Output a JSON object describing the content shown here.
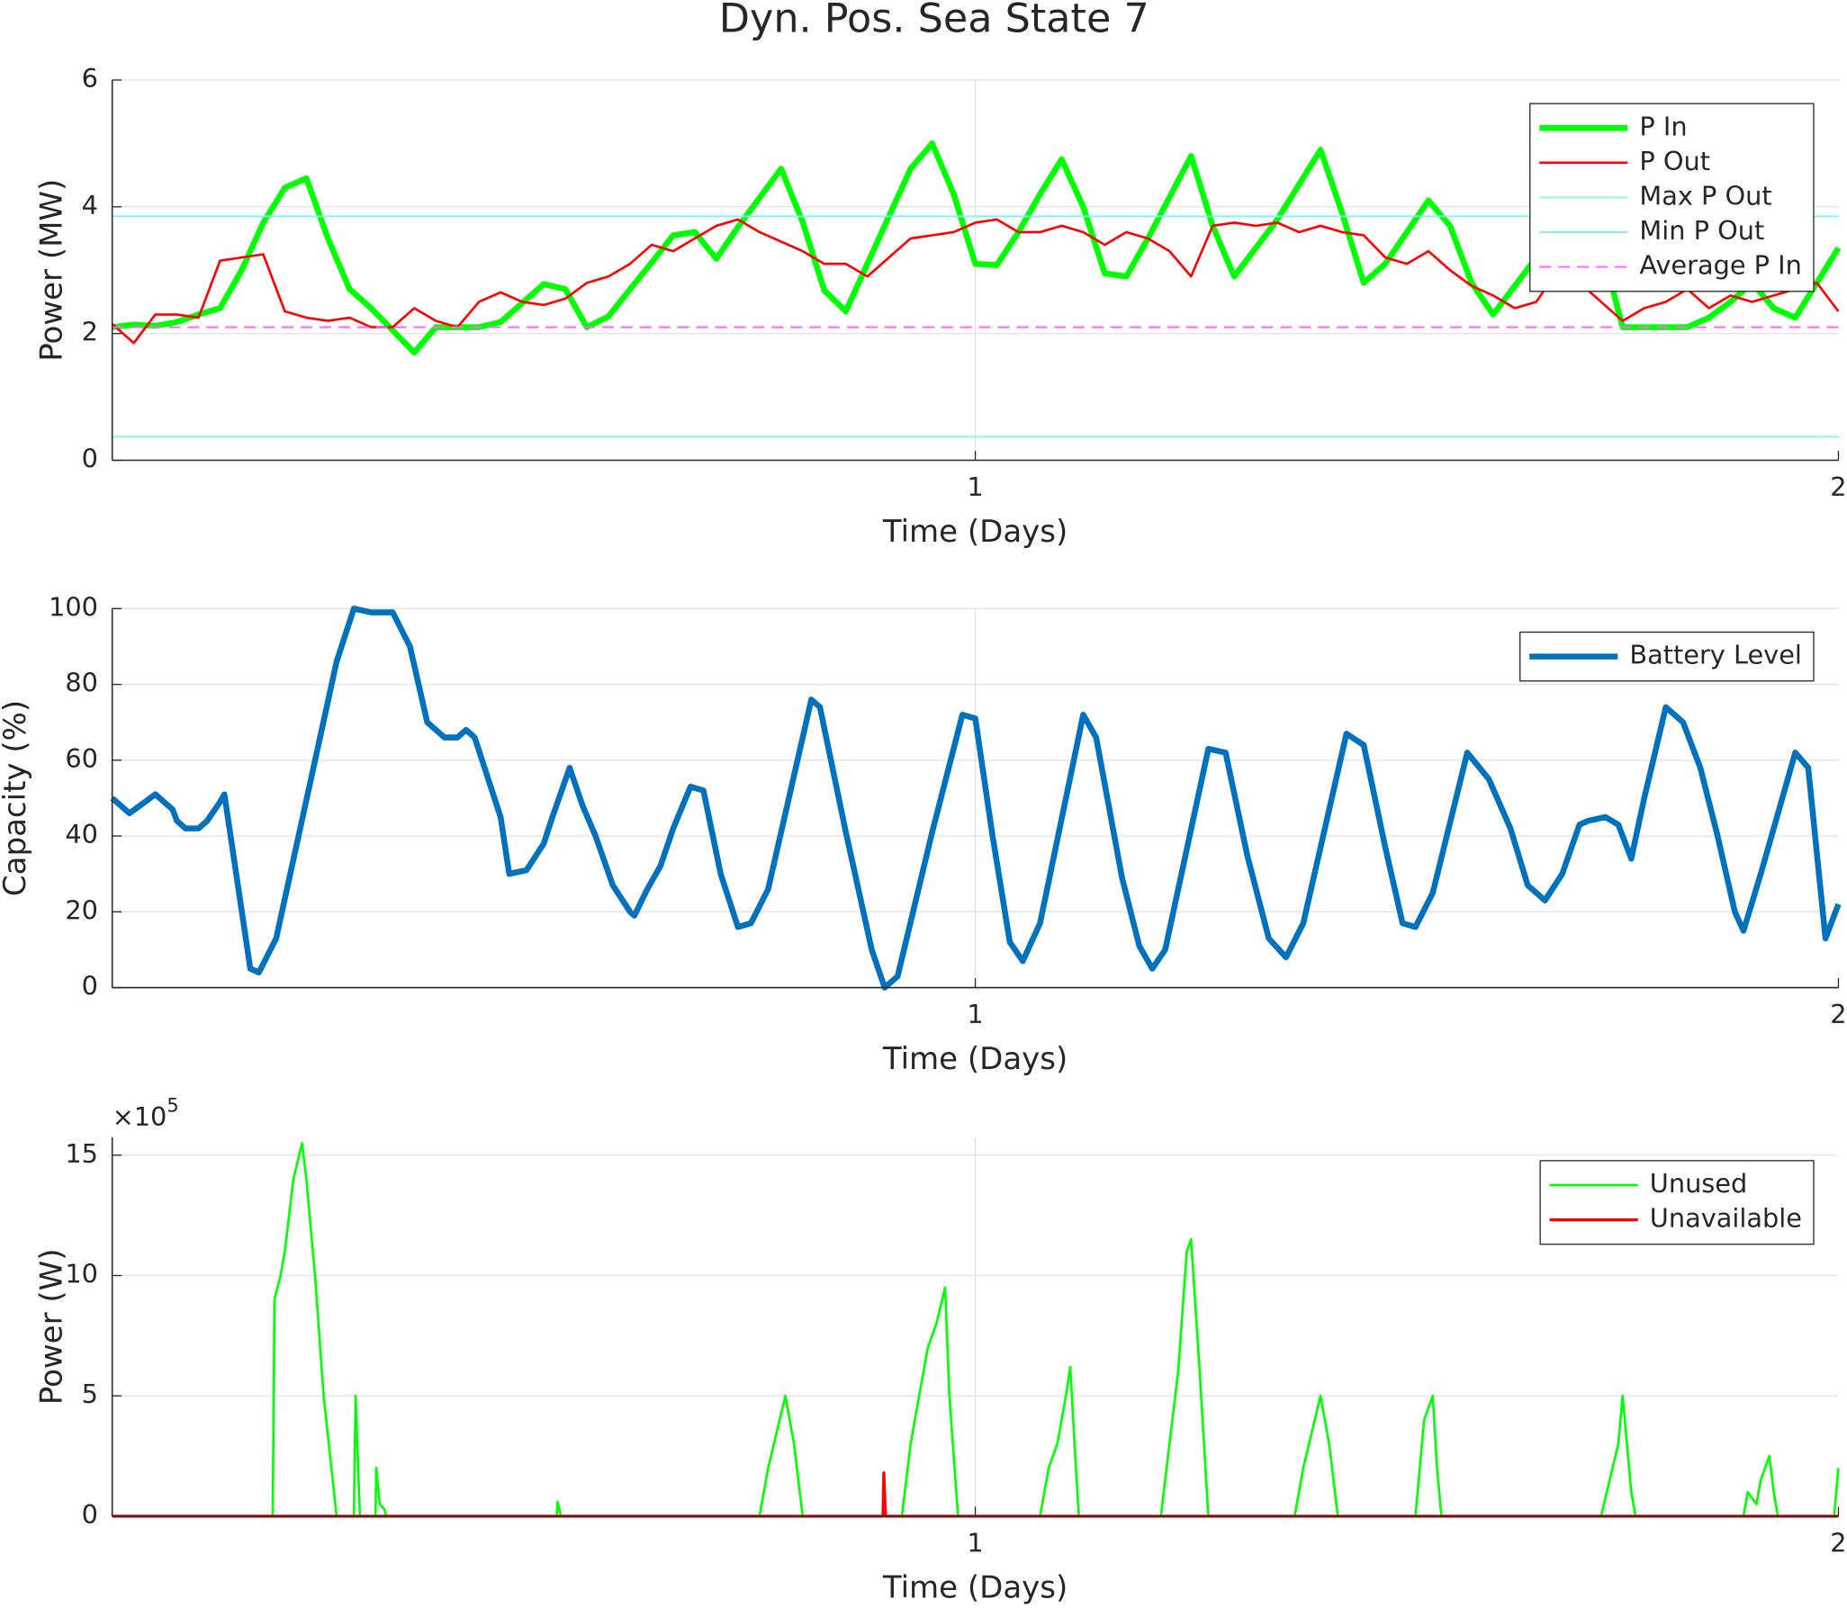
{
  "chart_data": [
    {
      "type": "line",
      "title": "Dyn. Pos. Sea State 7",
      "x_label": "Time (Days)",
      "y_label": "Power (MW)",
      "xlim": [
        0,
        2
      ],
      "xticks": [
        1,
        2
      ],
      "ylim": [
        0,
        6
      ],
      "yticks": [
        0,
        2,
        4,
        6
      ],
      "grid": true,
      "legend": "northeast",
      "x": [
        0,
        0.025,
        0.05,
        0.075,
        0.1,
        0.125,
        0.15,
        0.175,
        0.2,
        0.225,
        0.25,
        0.275,
        0.3,
        0.325,
        0.35,
        0.375,
        0.4,
        0.425,
        0.45,
        0.475,
        0.5,
        0.525,
        0.55,
        0.575,
        0.6,
        0.625,
        0.65,
        0.675,
        0.7,
        0.725,
        0.75,
        0.775,
        0.8,
        0.825,
        0.85,
        0.875,
        0.9,
        0.925,
        0.95,
        0.975,
        1,
        1.025,
        1.05,
        1.075,
        1.1,
        1.125,
        1.15,
        1.175,
        1.2,
        1.225,
        1.25,
        1.275,
        1.3,
        1.325,
        1.35,
        1.375,
        1.4,
        1.425,
        1.45,
        1.475,
        1.5,
        1.525,
        1.55,
        1.575,
        1.6,
        1.625,
        1.65,
        1.675,
        1.7,
        1.725,
        1.75,
        1.775,
        1.8,
        1.825,
        1.85,
        1.875,
        1.9,
        1.925,
        1.95,
        1.975,
        2
      ],
      "series": [
        {
          "name": "P In",
          "color": "#00ff00",
          "linewidth": 5,
          "values": [
            2.1,
            2.14,
            2.12,
            2.18,
            2.3,
            2.4,
            3.0,
            3.75,
            4.3,
            4.45,
            3.5,
            2.7,
            2.4,
            2.05,
            1.7,
            2.1,
            2.1,
            2.1,
            2.18,
            2.48,
            2.78,
            2.7,
            2.1,
            2.27,
            2.7,
            3.12,
            3.55,
            3.6,
            3.18,
            3.68,
            4.14,
            4.6,
            3.76,
            2.68,
            2.35,
            3.1,
            3.85,
            4.6,
            5.0,
            4.2,
            3.1,
            3.08,
            3.6,
            4.2,
            4.75,
            4.0,
            2.95,
            2.9,
            3.5,
            4.15,
            4.8,
            3.7,
            2.9,
            3.35,
            3.8,
            4.35,
            4.9,
            3.9,
            2.8,
            3.1,
            3.6,
            4.1,
            3.7,
            2.8,
            2.3,
            2.75,
            3.2,
            3.8,
            4.6,
            3.4,
            2.1,
            2.1,
            2.1,
            2.1,
            2.25,
            2.5,
            2.8,
            2.4,
            2.25,
            2.8,
            3.35
          ]
        },
        {
          "name": "P Out",
          "color": "#ff0000",
          "linewidth": 2,
          "values": [
            2.15,
            1.85,
            2.3,
            2.3,
            2.25,
            3.15,
            3.2,
            3.25,
            2.35,
            2.25,
            2.2,
            2.25,
            2.1,
            2.1,
            2.4,
            2.2,
            2.1,
            2.5,
            2.65,
            2.5,
            2.45,
            2.55,
            2.8,
            2.9,
            3.1,
            3.4,
            3.3,
            3.5,
            3.7,
            3.8,
            3.6,
            3.45,
            3.3,
            3.1,
            3.1,
            2.9,
            3.2,
            3.5,
            3.55,
            3.6,
            3.75,
            3.8,
            3.6,
            3.6,
            3.7,
            3.6,
            3.4,
            3.6,
            3.5,
            3.3,
            2.9,
            3.7,
            3.75,
            3.7,
            3.75,
            3.6,
            3.7,
            3.6,
            3.55,
            3.2,
            3.1,
            3.3,
            3.0,
            2.75,
            2.6,
            2.4,
            2.5,
            3.0,
            2.8,
            2.5,
            2.2,
            2.4,
            2.5,
            2.7,
            2.4,
            2.6,
            2.5,
            2.6,
            2.7,
            2.8,
            2.35
          ]
        },
        {
          "name": "Max P Out",
          "color": "#80f5f0",
          "linewidth": 1.5,
          "constant": 3.85
        },
        {
          "name": "Min P Out",
          "color": "#80f5f0",
          "linewidth": 1.5,
          "constant": 0.37
        },
        {
          "name": "Average P In",
          "color": "#ff66ff",
          "linewidth": 1.5,
          "dashed": true,
          "constant": 2.1
        }
      ]
    },
    {
      "type": "line",
      "x_label": "Time (Days)",
      "y_label": "Capacity (%)",
      "xlim": [
        0,
        2
      ],
      "xticks": [
        1,
        2
      ],
      "ylim": [
        0,
        100
      ],
      "yticks": [
        0,
        20,
        40,
        60,
        80,
        100
      ],
      "grid": true,
      "legend": "northeast",
      "x": [
        0,
        0.02,
        0.05,
        0.07,
        0.075,
        0.085,
        0.1,
        0.11,
        0.125,
        0.13,
        0.16,
        0.17,
        0.19,
        0.26,
        0.28,
        0.3,
        0.325,
        0.345,
        0.365,
        0.385,
        0.4,
        0.41,
        0.42,
        0.45,
        0.46,
        0.48,
        0.5,
        0.51,
        0.53,
        0.545,
        0.56,
        0.58,
        0.6,
        0.605,
        0.62,
        0.635,
        0.65,
        0.67,
        0.685,
        0.705,
        0.725,
        0.74,
        0.76,
        0.81,
        0.82,
        0.85,
        0.88,
        0.895,
        0.91,
        0.95,
        0.985,
        1.0,
        1.02,
        1.04,
        1.055,
        1.075,
        1.125,
        1.14,
        1.17,
        1.19,
        1.205,
        1.22,
        1.27,
        1.29,
        1.315,
        1.34,
        1.36,
        1.38,
        1.43,
        1.45,
        1.475,
        1.495,
        1.51,
        1.53,
        1.57,
        1.595,
        1.62,
        1.64,
        1.66,
        1.68,
        1.7,
        1.71,
        1.73,
        1.745,
        1.76,
        1.775,
        1.8,
        1.82,
        1.84,
        1.86,
        1.88,
        1.89,
        1.91,
        1.95,
        1.965,
        1.985,
        2
      ],
      "series": [
        {
          "name": "Battery Level",
          "color": "#0072bd",
          "linewidth": 5,
          "values": [
            50,
            46,
            51,
            47,
            44,
            42,
            42,
            44,
            49,
            51,
            5,
            4,
            13,
            86,
            100,
            99,
            99,
            90,
            70,
            66,
            66,
            68,
            66,
            45,
            30,
            31,
            38,
            45,
            58,
            48,
            40,
            27,
            20,
            19,
            26,
            32,
            42,
            53,
            52,
            30,
            16,
            17,
            26,
            76,
            74,
            41,
            10,
            0,
            3,
            41,
            72,
            71,
            40,
            12,
            7,
            17,
            72,
            66,
            29,
            11,
            5,
            10,
            63,
            62,
            35,
            13,
            8,
            17,
            67,
            64,
            37,
            17,
            16,
            25,
            62,
            55,
            42,
            27,
            23,
            30,
            43,
            44,
            45,
            43,
            34,
            50,
            74,
            70,
            58,
            40,
            20,
            15,
            30,
            62,
            58,
            13,
            22
          ]
        }
      ]
    },
    {
      "type": "line",
      "x_label": "Time (Days)",
      "y_label": "Power (W)",
      "y_multiplier": "×10",
      "y_multiplier_exponent": "5",
      "xlim": [
        0,
        2
      ],
      "xticks": [
        1,
        2
      ],
      "ylim": [
        0,
        15.75
      ],
      "yticks": [
        0,
        5,
        10,
        15
      ],
      "grid": true,
      "legend": "northeast",
      "series": [
        {
          "name": "Unused",
          "color": "#00ff00",
          "linewidth": 2,
          "x": [
            0,
            0.186,
            0.188,
            0.195,
            0.2,
            0.21,
            0.22,
            0.225,
            0.235,
            0.245,
            0.26,
            0.28,
            0.282,
            0.287,
            0.305,
            0.306,
            0.31,
            0.315,
            0.318,
            0.515,
            0.516,
            0.52,
            0.75,
            0.76,
            0.77,
            0.78,
            0.79,
            0.8,
            0.915,
            0.925,
            0.935,
            0.945,
            0.955,
            0.965,
            0.97,
            0.98,
            1.075,
            1.085,
            1.095,
            1.105,
            1.11,
            1.115,
            1.12,
            1.215,
            1.225,
            1.235,
            1.245,
            1.25,
            1.26,
            1.27,
            1.37,
            1.38,
            1.39,
            1.4,
            1.41,
            1.42,
            1.51,
            1.52,
            1.53,
            1.535,
            1.54,
            1.725,
            1.735,
            1.745,
            1.75,
            1.76,
            1.765,
            1.89,
            1.895,
            1.905,
            1.91,
            1.92,
            1.925,
            1.93,
            1.995,
            2
          ],
          "values": [
            0,
            0,
            9,
            10,
            11,
            14,
            15.5,
            14,
            10,
            5,
            0,
            0,
            5,
            0,
            0,
            2,
            0.5,
            0.3,
            0,
            0,
            0.6,
            0,
            0,
            2,
            3.5,
            5,
            3,
            0,
            0,
            3,
            5,
            7,
            8,
            9.5,
            5,
            0,
            0,
            2,
            3,
            5,
            6.2,
            3,
            0,
            0,
            3,
            6,
            11,
            11.5,
            6,
            0,
            0,
            2,
            3.5,
            5,
            3,
            0,
            0,
            4,
            5,
            2,
            0,
            0,
            1.5,
            3,
            5,
            1,
            0,
            0,
            1,
            0.5,
            1.5,
            2.5,
            1,
            0,
            0,
            2
          ]
        },
        {
          "name": "Unavailable",
          "color": "#ff0000",
          "linewidth": 2.5,
          "x": [
            0,
            0.893,
            0.894,
            0.896,
            2
          ],
          "values": [
            0,
            0,
            1.8,
            0,
            0
          ]
        }
      ]
    }
  ]
}
